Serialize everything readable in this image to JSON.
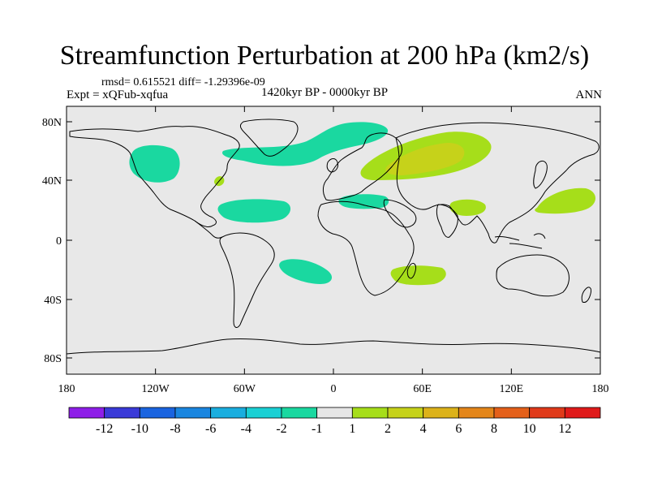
{
  "title": "Streamfunction Perturbation at 200 hPa (km2/s)",
  "stats": "rmsd= 0.615521 diff= -1.29396e-09",
  "expt": "Expt = xQFub-xqfua",
  "period": "1420kyr BP - 0000kyr BP",
  "season": "ANN",
  "axes": {
    "lat_ticks": [
      "80N",
      "40N",
      "0",
      "40S",
      "80S"
    ],
    "lon_ticks": [
      "180",
      "120W",
      "60W",
      "0",
      "60E",
      "120E",
      "180"
    ]
  },
  "colorbar": {
    "labels": [
      "-12",
      "-10",
      "-8",
      "-6",
      "-4",
      "-2",
      "-1",
      "1",
      "2",
      "4",
      "6",
      "8",
      "10",
      "12"
    ],
    "colors": [
      "#8e1ee8",
      "#3a3ad8",
      "#1a64e0",
      "#1a86e0",
      "#1aaedf",
      "#1ad0d4",
      "#1ad8a0",
      "#e6e6e6",
      "#a6de1a",
      "#c6d21a",
      "#dcb21a",
      "#e4861a",
      "#e4601a",
      "#e03a1a",
      "#e01a1a"
    ]
  },
  "colors": {
    "ocean": "#e8e8e8",
    "neg_level": "#1ad8a0",
    "pos_level_1": "#a6de1a",
    "pos_level_2": "#c6d21a"
  },
  "anomalies": [
    {
      "sign": "negative",
      "level": "-1 to -2",
      "region": "North America west"
    },
    {
      "sign": "negative",
      "level": "-1 to -2",
      "region": "North Atlantic"
    },
    {
      "sign": "negative",
      "level": "-1 to -2",
      "region": "Subtropical Atlantic"
    },
    {
      "sign": "negative",
      "level": "-1 to -2",
      "region": "Mediterranean"
    },
    {
      "sign": "negative",
      "level": "-1 to -2",
      "region": "South Atlantic"
    },
    {
      "sign": "positive",
      "level": "1 to 2",
      "region": "Eurasia"
    },
    {
      "sign": "positive",
      "level": "2 to 4",
      "region": "Central Asia"
    },
    {
      "sign": "positive",
      "level": "1 to 2",
      "region": "East US coast"
    },
    {
      "sign": "positive",
      "level": "1 to 2",
      "region": "South Asia"
    },
    {
      "sign": "positive",
      "level": "1 to 2",
      "region": "West Pacific"
    },
    {
      "sign": "positive",
      "level": "1 to 2",
      "region": "Southeast Africa"
    }
  ]
}
